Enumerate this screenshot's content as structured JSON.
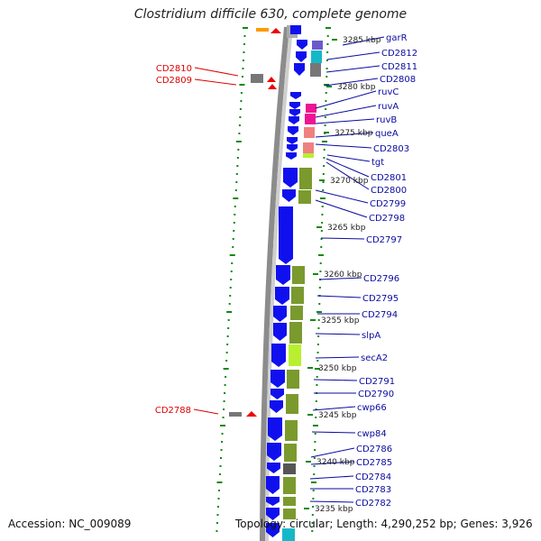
{
  "title": "Clostridium difficile 630, complete genome",
  "accession_text": "Accession: NC_009089",
  "topology_text": "Topology: circular; Length: 4,290,252 bp; Genes: 3,926",
  "colors": {
    "backbone": "#8c8c8c",
    "cds_strand": "#1010ee",
    "tick": "#118811",
    "label_right": "#0a0aa0",
    "label_left": "#dd0000",
    "orange": "#ff9900",
    "red": "#ee0000",
    "purple": "#6a5acd",
    "cyan": "#15b8c8",
    "grey": "#777777",
    "magenta": "#ee1493",
    "salmon": "#f08080",
    "olive": "#7a9a2e",
    "lime": "#b8f030",
    "darkgrey": "#555555"
  },
  "kbp_labels": [
    "3285 kbp",
    "3280 kbp",
    "3275 kbp",
    "3270 kbp",
    "3265 kbp",
    "3260 kbp",
    "3255 kbp",
    "3250 kbp",
    "3245 kbp",
    "3240 kbp",
    "3235 kbp"
  ],
  "right_genes": [
    "garR",
    "CD2812",
    "CD2811",
    "CD2808",
    "ruvC",
    "ruvA",
    "ruvB",
    "queA",
    "CD2803",
    "tgt",
    "CD2801",
    "CD2800",
    "CD2799",
    "CD2798",
    "CD2797",
    "CD2796",
    "CD2795",
    "CD2794",
    "slpA",
    "secA2",
    "CD2791",
    "CD2790",
    "cwp66",
    "cwp84",
    "CD2786",
    "CD2785",
    "CD2784",
    "CD2783",
    "CD2782"
  ],
  "left_genes": [
    "CD2810",
    "CD2809",
    "CD2788"
  ]
}
